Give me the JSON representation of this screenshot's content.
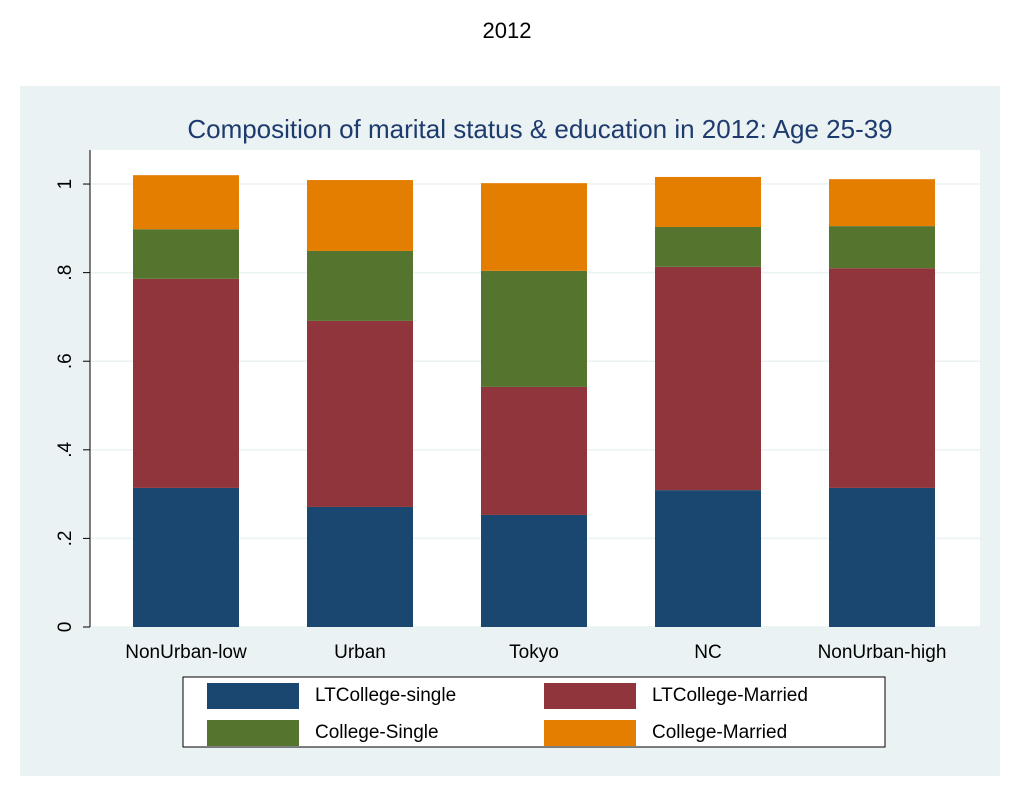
{
  "title": "2012",
  "chart_data": {
    "type": "stacked-bar",
    "title": "Composition of marital status & education in 2012: Age 25-39",
    "categories": [
      "NonUrban-low",
      "Urban",
      "Tokyo",
      "NC",
      "NonUrban-high"
    ],
    "series": [
      {
        "name": "LTCollege-single",
        "color": "#1a476f",
        "values": [
          0.314,
          0.271,
          0.253,
          0.309,
          0.314
        ]
      },
      {
        "name": "LTCollege-Married",
        "color": "#90353b",
        "values": [
          0.472,
          0.42,
          0.289,
          0.504,
          0.496
        ]
      },
      {
        "name": "College-Single",
        "color": "#55752f",
        "values": [
          0.112,
          0.158,
          0.262,
          0.09,
          0.095
        ]
      },
      {
        "name": "College-Married",
        "color": "#e37e00",
        "values": [
          0.122,
          0.16,
          0.198,
          0.113,
          0.106
        ]
      }
    ],
    "ylim": [
      0,
      1.08
    ],
    "yticks": [
      0,
      {
        "value": 0.2,
        "label": ".2"
      },
      {
        "value": 0.4,
        "label": ".4"
      },
      {
        "value": 0.6,
        "label": ".6"
      },
      {
        "value": 0.8,
        "label": ".8"
      },
      1
    ],
    "grid": true
  }
}
